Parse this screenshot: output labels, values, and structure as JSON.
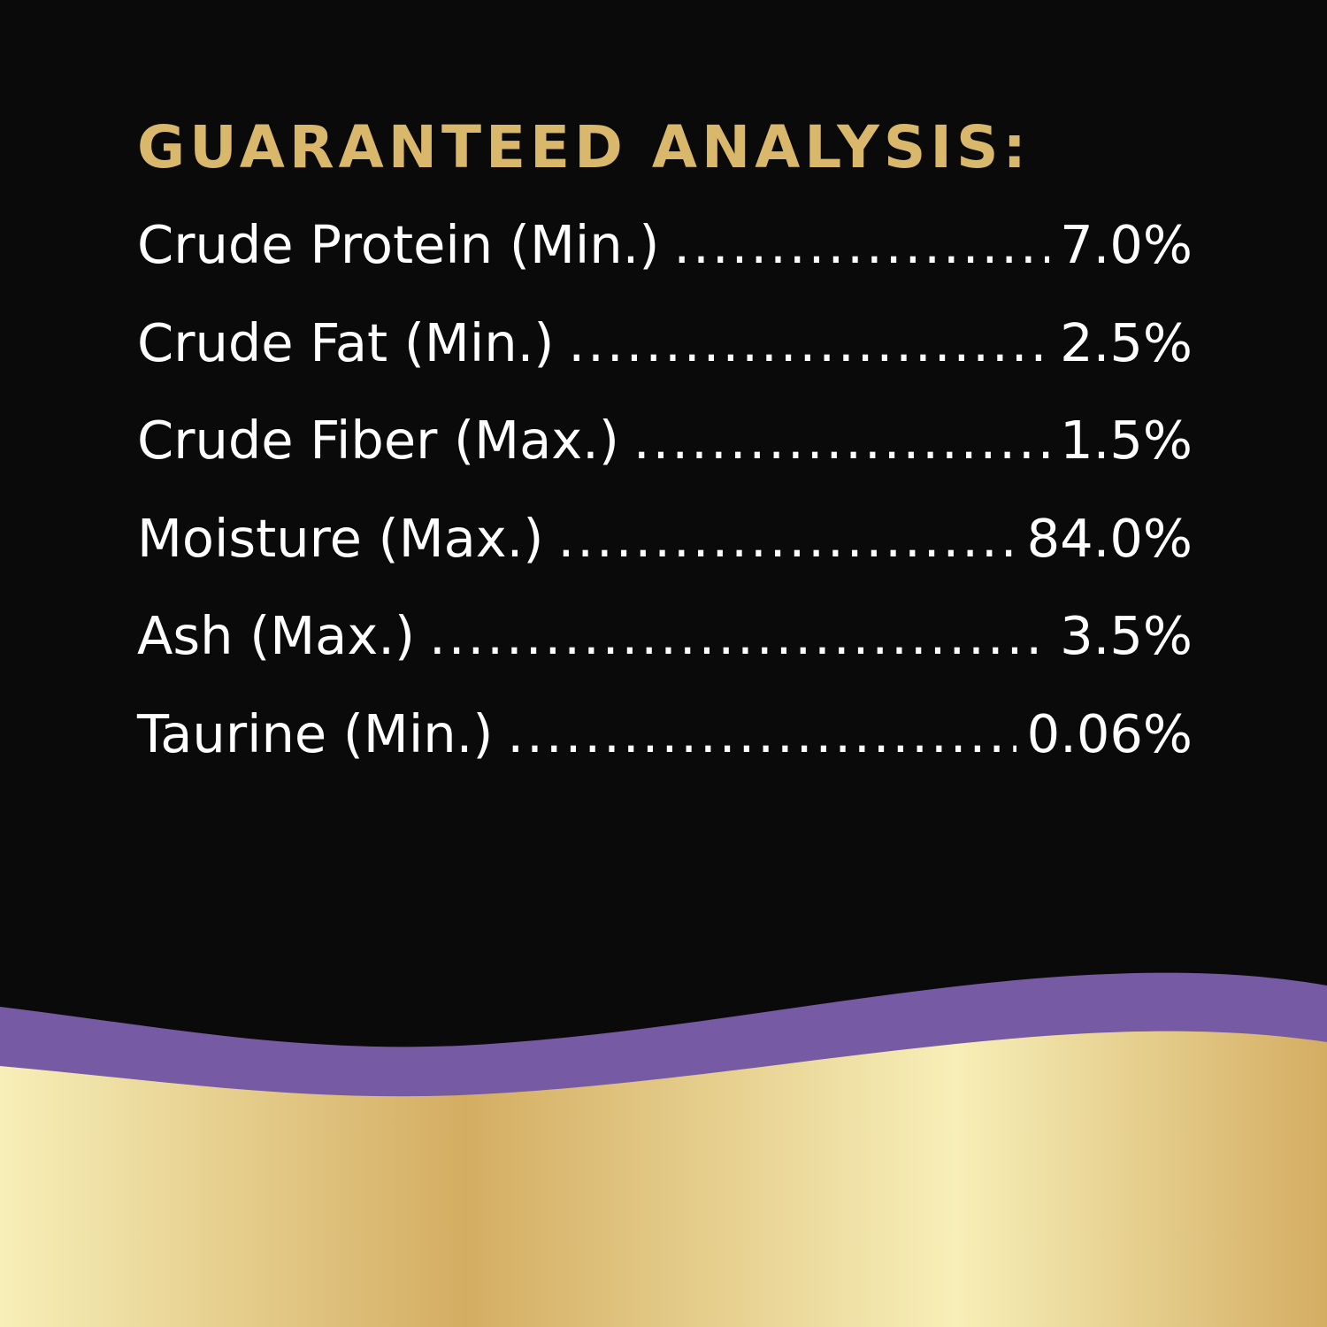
{
  "heading": "GUARANTEED ANALYSIS:",
  "rows": [
    {
      "label": "Crude Protein (Min.)",
      "value": "7.0%"
    },
    {
      "label": "Crude Fat (Min.)",
      "value": "2.5%"
    },
    {
      "label": "Crude Fiber (Max.)",
      "value": "1.5%"
    },
    {
      "label": "Moisture (Max.)",
      "value": "84.0%"
    },
    {
      "label": "Ash (Max.)",
      "value": "3.5%"
    },
    {
      "label": "Taurine (Min.)",
      "value": "0.06%"
    }
  ],
  "colors": {
    "background": "#0a0a0a",
    "heading": "#d9b86c",
    "text": "#ffffff",
    "purple_band": "#765aa3",
    "gold_light": "#f7efb8",
    "gold_dark": "#d4ad62"
  }
}
